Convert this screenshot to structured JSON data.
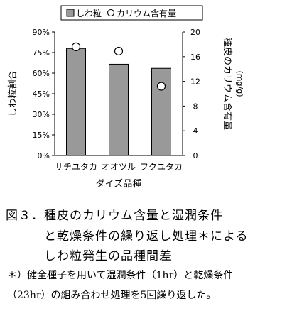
{
  "chart_data": {
    "type": "bar",
    "categories": [
      "サチユタカ",
      "オオツル",
      "フクユタカ"
    ],
    "series": [
      {
        "name": "しわ粒",
        "kind": "bar",
        "axis": "left",
        "values": [
          78,
          66.5,
          63.5
        ],
        "color": "#999999"
      },
      {
        "name": "カリウム含有量",
        "kind": "scatter",
        "axis": "right",
        "values": [
          17.6,
          16.9,
          11.2
        ],
        "color": "#ffffff"
      }
    ],
    "xlabel": "ダイズ品種",
    "ylabel": "しわ粒割合",
    "y2label": "種皮のカリウム含有量",
    "y2unit": "(mg/g)",
    "ylim": [
      0,
      90
    ],
    "y2lim": [
      0,
      20
    ],
    "yticks": [
      "0%",
      "15%",
      "30%",
      "45%",
      "60%",
      "75%",
      "90%"
    ],
    "y2ticks": [
      "0",
      "4",
      "8",
      "12",
      "16",
      "20"
    ],
    "legend_position": "top",
    "grid": false
  },
  "caption": {
    "line1": "図３．種皮のカリウム含量と湿潤条件",
    "line2": "と乾燥条件の繰り返し処理＊による",
    "line3": "しわ粒発生の品種間差"
  },
  "note": {
    "line1": "＊）健全種子を用いて湿潤条件（1hr）と乾燥条件",
    "line2": "（23hr）の組み合わせ処理を5回繰り返した。"
  }
}
